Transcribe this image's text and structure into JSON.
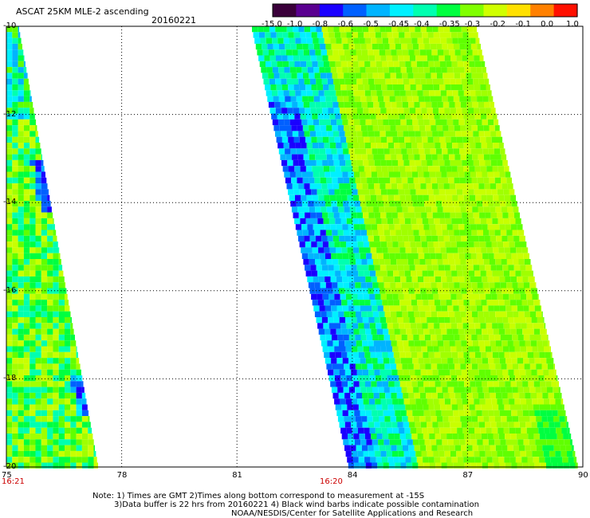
{
  "header": {
    "title": "ASCAT 25KM MLE-2 ascending",
    "date": "20160221"
  },
  "colorbar": {
    "labels": [
      "-15.0",
      "-1.0",
      "-0.8",
      "-0.6",
      "-0.5",
      "-0.45",
      "-0.4",
      "-0.35",
      "-0.3",
      "-0.2",
      "-0.1",
      "0.0",
      "1.0"
    ],
    "colors": [
      "#3a003a",
      "#5a0090",
      "#1a00ff",
      "#0060ff",
      "#00b4ff",
      "#00f0ff",
      "#00ffb0",
      "#00ff40",
      "#80ff00",
      "#d0ff00",
      "#ffe000",
      "#ff8000",
      "#ff1000"
    ]
  },
  "map": {
    "lat_labels": [
      "-10",
      "-12",
      "-14",
      "-16",
      "-18",
      "-20"
    ],
    "lon_labels": [
      "75",
      "78",
      "81",
      "84",
      "87",
      "90"
    ],
    "time_labels": [
      {
        "text": "16:21"
      },
      {
        "text": "16:20"
      }
    ]
  },
  "notes": {
    "line1": "Note: 1) Times are GMT 2)Times along bottom correspond to measurement at -15S",
    "line2": "3)Data buffer is 22 hrs from 20160221 4) Black wind barbs indicate possible contamination",
    "line3": "NOAA/NESDIS/Center for Satellite Applications and Research"
  }
}
